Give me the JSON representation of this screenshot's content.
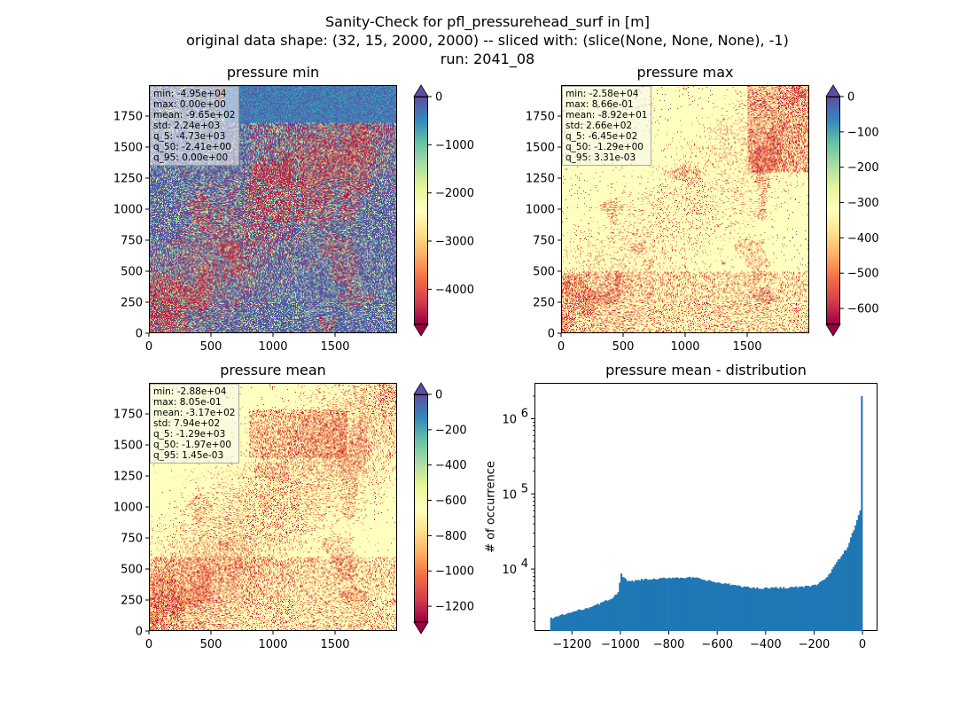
{
  "suptitle": {
    "line1": "Sanity-Check for pfl_pressurehead_surf in [m]",
    "line2": "original data shape: (32, 15, 2000, 2000) -- sliced with: (slice(None, None, None), -1)",
    "line3": "run: 2041_08"
  },
  "colormap": "Spectral",
  "chart_data": [
    {
      "type": "heatmap",
      "title": "pressure min",
      "x_ticks": [
        "0",
        "500",
        "1000",
        "1500"
      ],
      "y_ticks": [
        "0",
        "250",
        "500",
        "750",
        "1000",
        "1250",
        "1500",
        "1750"
      ],
      "xlim": [
        0,
        2000
      ],
      "ylim": [
        0,
        2000
      ],
      "colorbar": {
        "range": [
          -4730,
          0
        ],
        "ticks": [
          "0",
          "−1000",
          "−2000",
          "−3000",
          "−4000"
        ],
        "extend": "both"
      },
      "stats": [
        "min: -4.95e+04",
        "max: 0.00e+00",
        "mean: -9.65e+02",
        "std: 2.24e+03",
        "q_5: -4.73e+03",
        "q_50: -2.41e+00",
        "q_95: 0.00e+00"
      ]
    },
    {
      "type": "heatmap",
      "title": "pressure max",
      "x_ticks": [
        "0",
        "500",
        "1000",
        "1500"
      ],
      "y_ticks": [
        "0",
        "250",
        "500",
        "750",
        "1000",
        "1250",
        "1500",
        "1750"
      ],
      "xlim": [
        0,
        2000
      ],
      "ylim": [
        0,
        2000
      ],
      "colorbar": {
        "range": [
          -645,
          0
        ],
        "ticks": [
          "0",
          "−100",
          "−200",
          "−300",
          "−400",
          "−500",
          "−600"
        ],
        "extend": "both"
      },
      "stats": [
        "min: -2.58e+04",
        "max: 8.66e-01",
        "mean: -8.92e+01",
        "std: 2.66e+02",
        "q_5: -6.45e+02",
        "q_50: -1.29e+00",
        "q_95: 3.31e-03"
      ]
    },
    {
      "type": "heatmap",
      "title": "pressure mean",
      "x_ticks": [
        "0",
        "500",
        "1000",
        "1500"
      ],
      "y_ticks": [
        "0",
        "250",
        "500",
        "750",
        "1000",
        "1250",
        "1500",
        "1750"
      ],
      "xlim": [
        0,
        2000
      ],
      "ylim": [
        0,
        2000
      ],
      "colorbar": {
        "range": [
          -1290,
          0
        ],
        "ticks": [
          "0",
          "−200",
          "−400",
          "−600",
          "−800",
          "−1000",
          "−1200"
        ],
        "extend": "both"
      },
      "stats": [
        "min: -2.88e+04",
        "max: 8.05e-01",
        "mean: -3.17e+02",
        "std: 7.94e+02",
        "q_5: -1.29e+03",
        "q_50: -1.97e+00",
        "q_95: 1.45e-03"
      ]
    },
    {
      "type": "bar",
      "title": "pressure mean - distribution",
      "ylabel": "# of occurrence",
      "yscale": "log",
      "xlim": [
        -1355,
        62
      ],
      "ylim": [
        1500,
        3000000
      ],
      "x_ticks": [
        -1200,
        -1000,
        -800,
        -600,
        -400,
        -200,
        0
      ],
      "x_tick_labels": [
        "−1200",
        "−1000",
        "−800",
        "−600",
        "−400",
        "−200",
        "0"
      ],
      "y_ticks": [
        10000,
        100000,
        1000000
      ],
      "color": "#1f77b4",
      "bin_range": [
        -1290,
        0
      ],
      "n_bins": 200,
      "profile_x": [
        -1290,
        -1100,
        -1030,
        -1005,
        -1000,
        -990,
        -970,
        -950,
        -900,
        -850,
        -800,
        -700,
        -600,
        -500,
        -450,
        -400,
        -300,
        -250,
        -200,
        -150,
        -100,
        -60,
        -30,
        -20,
        -10,
        -5,
        -2,
        0
      ],
      "profile_y": [
        2200,
        3300,
        4200,
        5000,
        9200,
        8000,
        6800,
        6900,
        7300,
        7300,
        7700,
        7700,
        6600,
        5900,
        5600,
        5600,
        5700,
        5800,
        6000,
        7500,
        13000,
        20000,
        38000,
        48000,
        60000,
        65000,
        2000000,
        2000000
      ]
    }
  ]
}
